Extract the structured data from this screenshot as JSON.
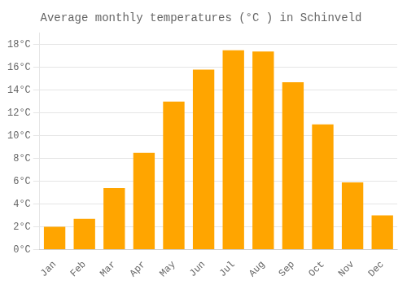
{
  "chart_data": {
    "type": "bar",
    "title": "Average monthly temperatures (°C ) in Schinveld",
    "categories": [
      "Jan",
      "Feb",
      "Mar",
      "Apr",
      "May",
      "Jun",
      "Jul",
      "Aug",
      "Sep",
      "Oct",
      "Nov",
      "Dec"
    ],
    "values": [
      2.0,
      2.7,
      5.4,
      8.5,
      13.0,
      15.8,
      17.5,
      17.4,
      14.7,
      11.0,
      5.9,
      3.0
    ],
    "color": "#FFA500",
    "ylim": [
      0,
      19
    ],
    "yticks": [
      {
        "value": 0,
        "label": "0°C"
      },
      {
        "value": 2,
        "label": "2°C"
      },
      {
        "value": 4,
        "label": "4°C"
      },
      {
        "value": 6,
        "label": "6°C"
      },
      {
        "value": 8,
        "label": "8°C"
      },
      {
        "value": 10,
        "label": "10°C"
      },
      {
        "value": 12,
        "label": "12°C"
      },
      {
        "value": 14,
        "label": "14°C"
      },
      {
        "value": 16,
        "label": "16°C"
      },
      {
        "value": 18,
        "label": "18°C"
      }
    ],
    "grid": true
  }
}
